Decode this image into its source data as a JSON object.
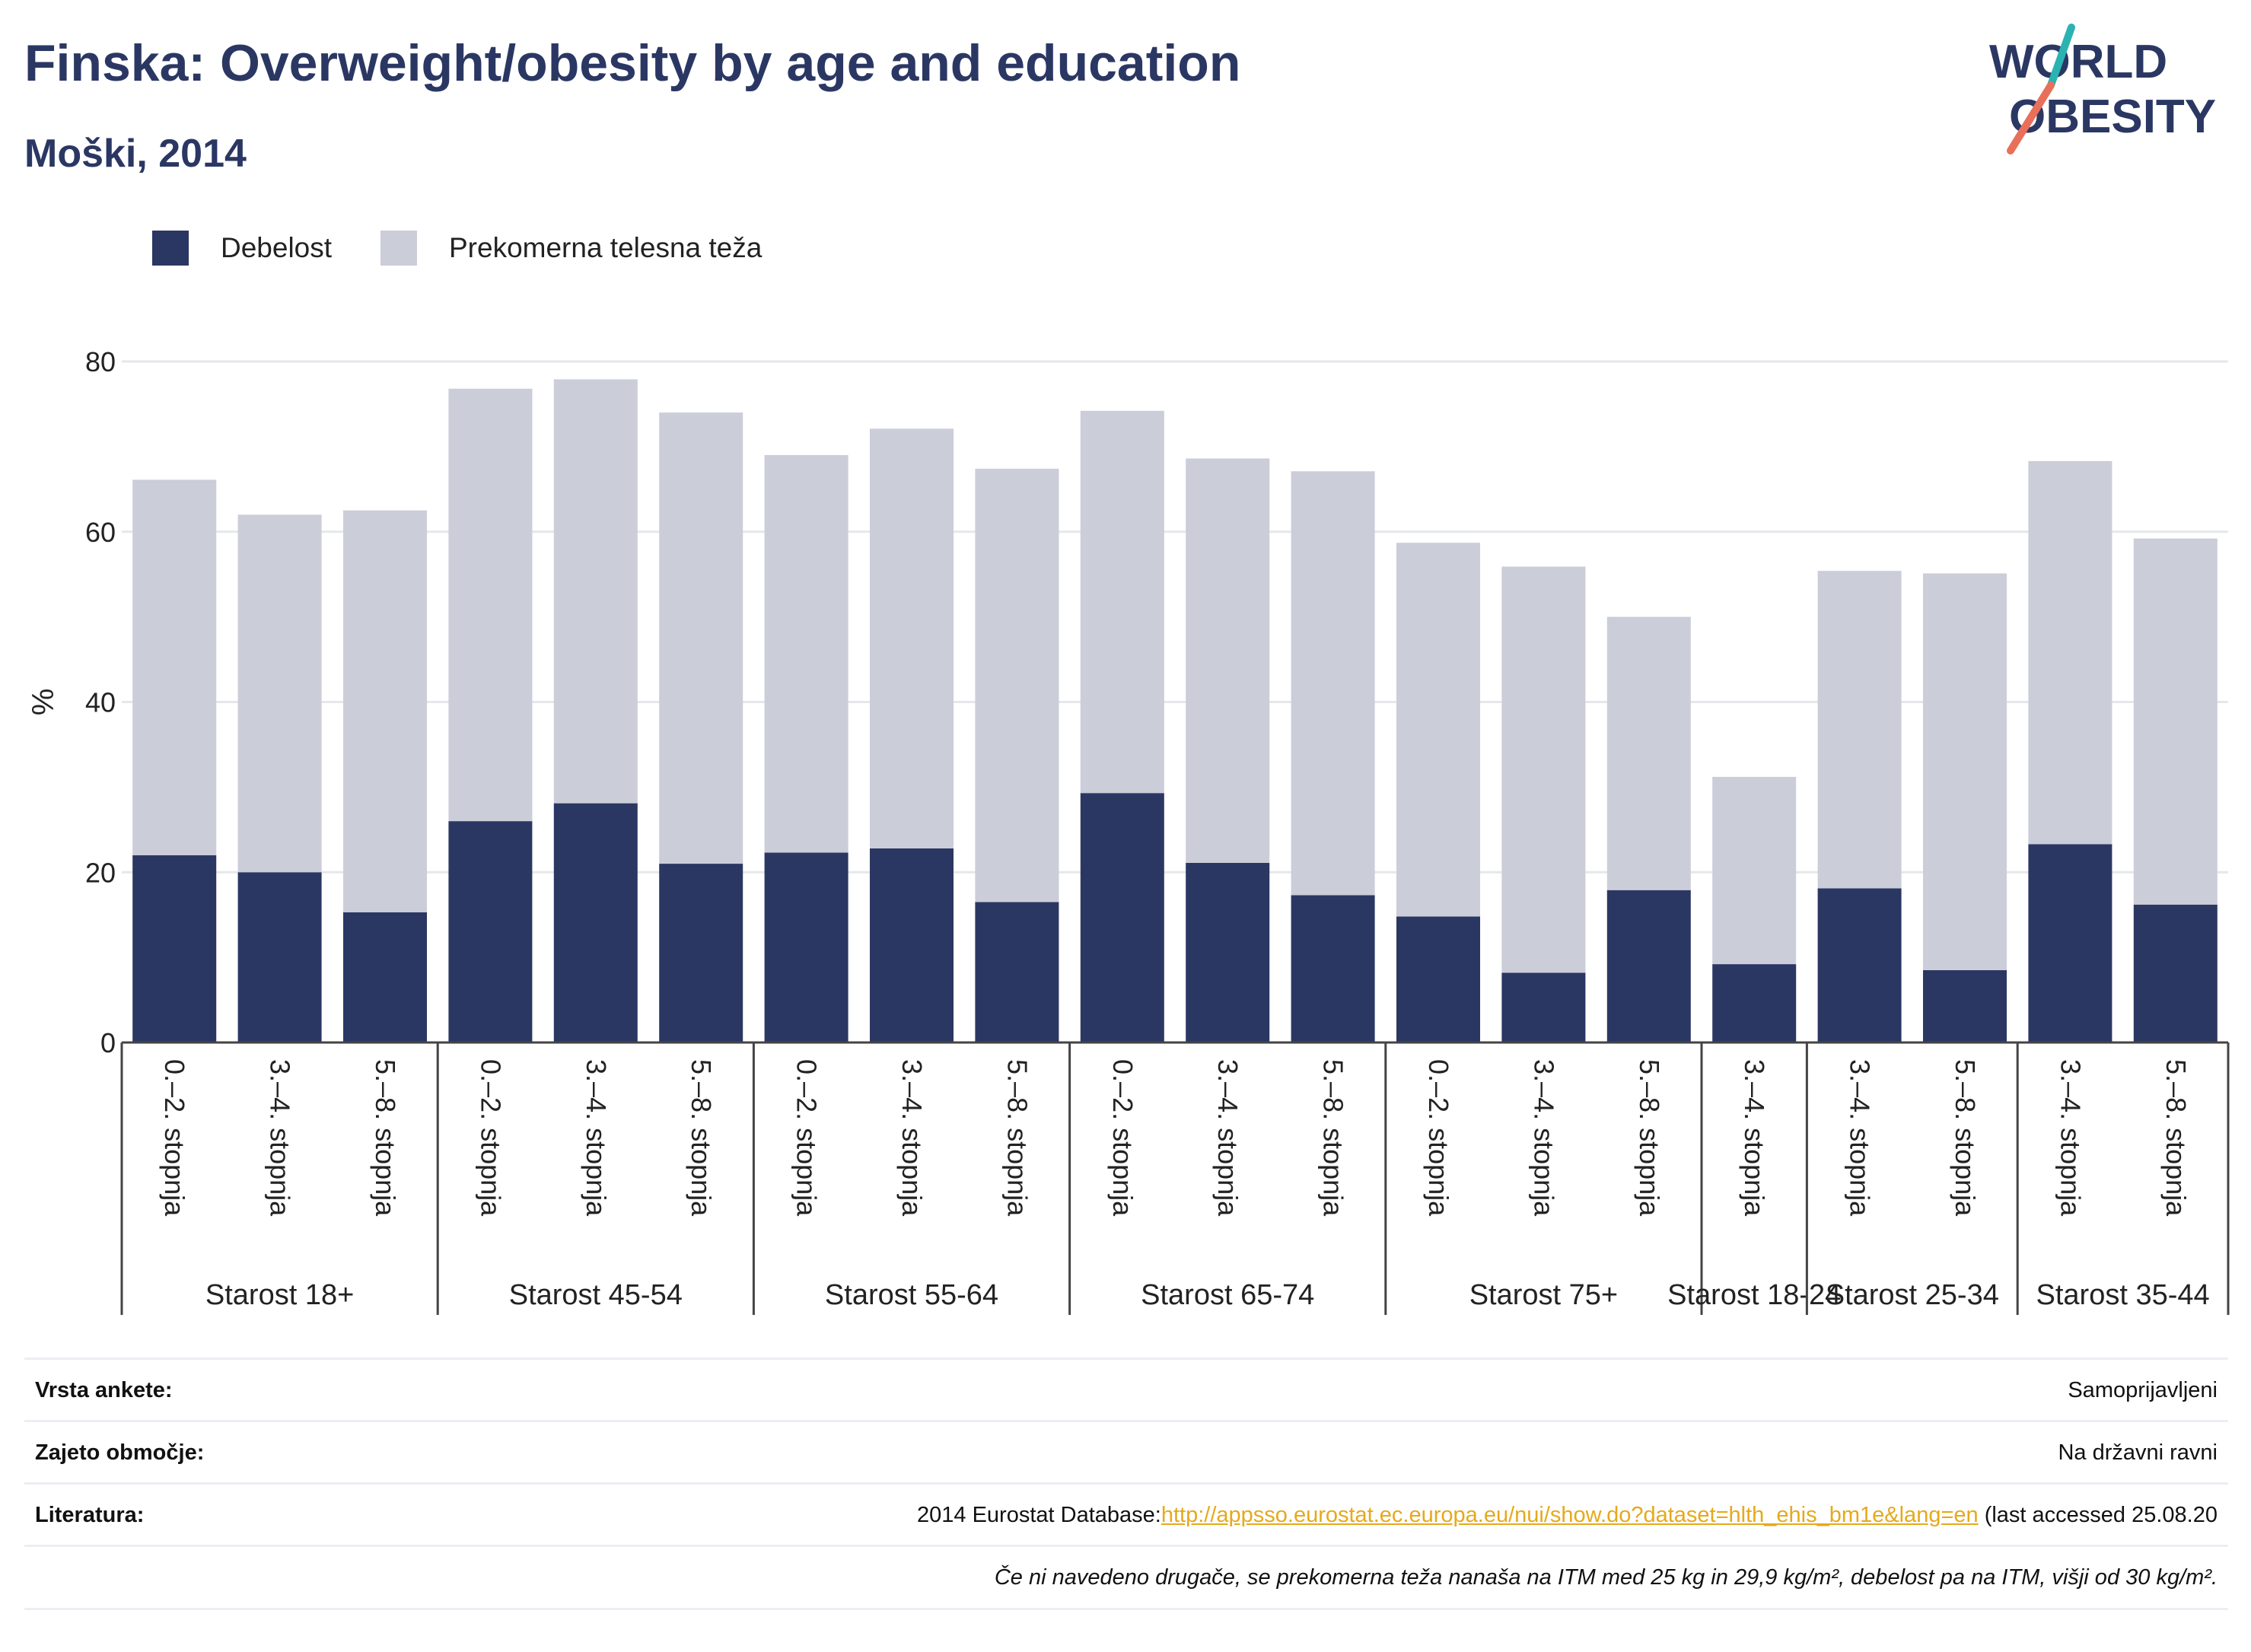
{
  "header": {
    "title": "Finska: Overweight/obesity by age and education",
    "subtitle": "Moški, 2014"
  },
  "logo": {
    "line1": "WORLD",
    "line2": "OBESITY"
  },
  "colors": {
    "obesity": "#2b3763",
    "overweight": "#cbcdd9",
    "accent_teal": "#2ab3b1",
    "accent_coral": "#e8705a",
    "link": "#e6a91b"
  },
  "chart_data": {
    "type": "bar",
    "stacked": true,
    "ylabel": "%",
    "ylim": [
      0,
      80
    ],
    "yticks": [
      0,
      20,
      40,
      60,
      80
    ],
    "grid": true,
    "legend_position": "top-left",
    "legend": [
      "Debelost",
      "Prekomerna telesna teža"
    ],
    "groups": [
      {
        "name": "Starost 18+",
        "categories": [
          "0.–2. stopnja",
          "3.–4. stopnja",
          "5.–8. stopnja"
        ]
      },
      {
        "name": "Starost 45-54",
        "categories": [
          "0.–2. stopnja",
          "3.–4. stopnja",
          "5.–8. stopnja"
        ]
      },
      {
        "name": "Starost 55-64",
        "categories": [
          "0.–2. stopnja",
          "3.–4. stopnja",
          "5.–8. stopnja"
        ]
      },
      {
        "name": "Starost 65-74",
        "categories": [
          "0.–2. stopnja",
          "3.–4. stopnja",
          "5.–8. stopnja"
        ]
      },
      {
        "name": "Starost 75+",
        "categories": [
          "0.–2. stopnja",
          "3.–4. stopnja",
          "5.–8. stopnja"
        ]
      },
      {
        "name": "Starost 18-24",
        "categories": [
          "3.–4. stopnja"
        ]
      },
      {
        "name": "Starost 25-34",
        "categories": [
          "3.–4. stopnja",
          "5.–8. stopnja"
        ]
      },
      {
        "name": "Starost 35-44",
        "categories": [
          "3.–4. stopnja",
          "5.–8. stopnja"
        ]
      }
    ],
    "series": [
      {
        "name": "Debelost",
        "values": [
          22,
          20,
          15.3,
          26,
          28.1,
          21,
          22.3,
          22.8,
          16.5,
          29.3,
          21.1,
          17.3,
          14.8,
          8.2,
          17.9,
          9.2,
          18.1,
          8.5,
          23.3,
          16.2
        ]
      },
      {
        "name": "Prekomerna telesna teža",
        "values": [
          44.1,
          42,
          47.2,
          50.8,
          49.8,
          53,
          46.7,
          49.3,
          50.9,
          44.9,
          47.5,
          49.8,
          43.9,
          47.7,
          32.1,
          22,
          37.3,
          46.6,
          45,
          43
        ]
      }
    ]
  },
  "meta": {
    "survey_label": "Vrsta ankete:",
    "survey_value": "Samoprijavljeni",
    "coverage_label": "Zajeto območje:",
    "coverage_value": "Na državni ravni",
    "reference_label": "Literatura:",
    "reference_prefix": "2014 Eurostat Database:",
    "reference_link": "http://appsso.eurostat.ec.europa.eu/nui/show.do?dataset=hlth_ehis_bm1e&lang=en",
    "reference_suffix": " (last accessed 25.08.20",
    "note": "Če ni navedeno drugače, se prekomerna teža nanaša na ITM med 25 kg in 29,9 kg/m², debelost pa na ITM, višji od 30 kg/m²."
  }
}
